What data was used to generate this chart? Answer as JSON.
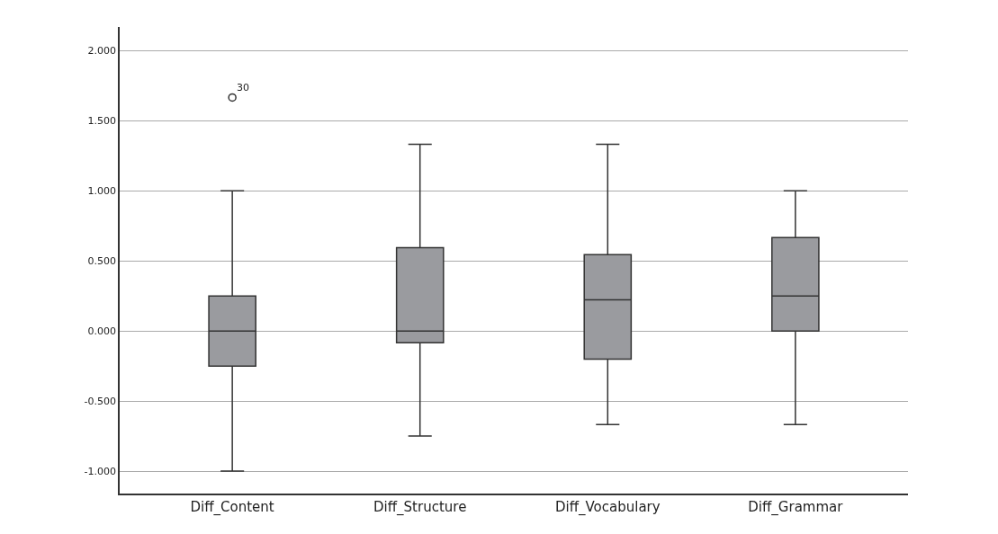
{
  "chart_data": {
    "type": "box",
    "categories": [
      "Diff_Content",
      "Diff_Structure",
      "Diff_Vocabulary",
      "Diff_Grammar"
    ],
    "boxes": [
      {
        "low": -1.0,
        "q1": -0.25,
        "median": 0.0,
        "q3": 0.25,
        "high": 1.0,
        "outliers": [
          1.667
        ]
      },
      {
        "low": -0.75,
        "q1": -0.083,
        "median": 0.0,
        "q3": 0.595,
        "high": 1.333
      },
      {
        "low": -0.667,
        "q1": -0.2,
        "median": 0.222,
        "q3": 0.545,
        "high": 1.333
      },
      {
        "low": -0.667,
        "q1": 0.0,
        "median": 0.25,
        "q3": 0.667,
        "high": 1.0
      }
    ],
    "color": "#9a9b9f",
    "annotations": [
      "30"
    ],
    "ylim": [
      -1.16,
      2.17
    ],
    "yticks": [
      {
        "value": -1,
        "label": "-1.000"
      },
      {
        "value": -0.5,
        "label": "-0.500"
      },
      {
        "value": 0,
        "label": "0.000"
      },
      {
        "value": 0.5,
        "label": "0.500"
      },
      {
        "value": 1,
        "label": "1.000"
      },
      {
        "value": 1.5,
        "label": "1.500"
      },
      {
        "value": 2,
        "label": "2.000"
      }
    ],
    "grid": "y"
  }
}
